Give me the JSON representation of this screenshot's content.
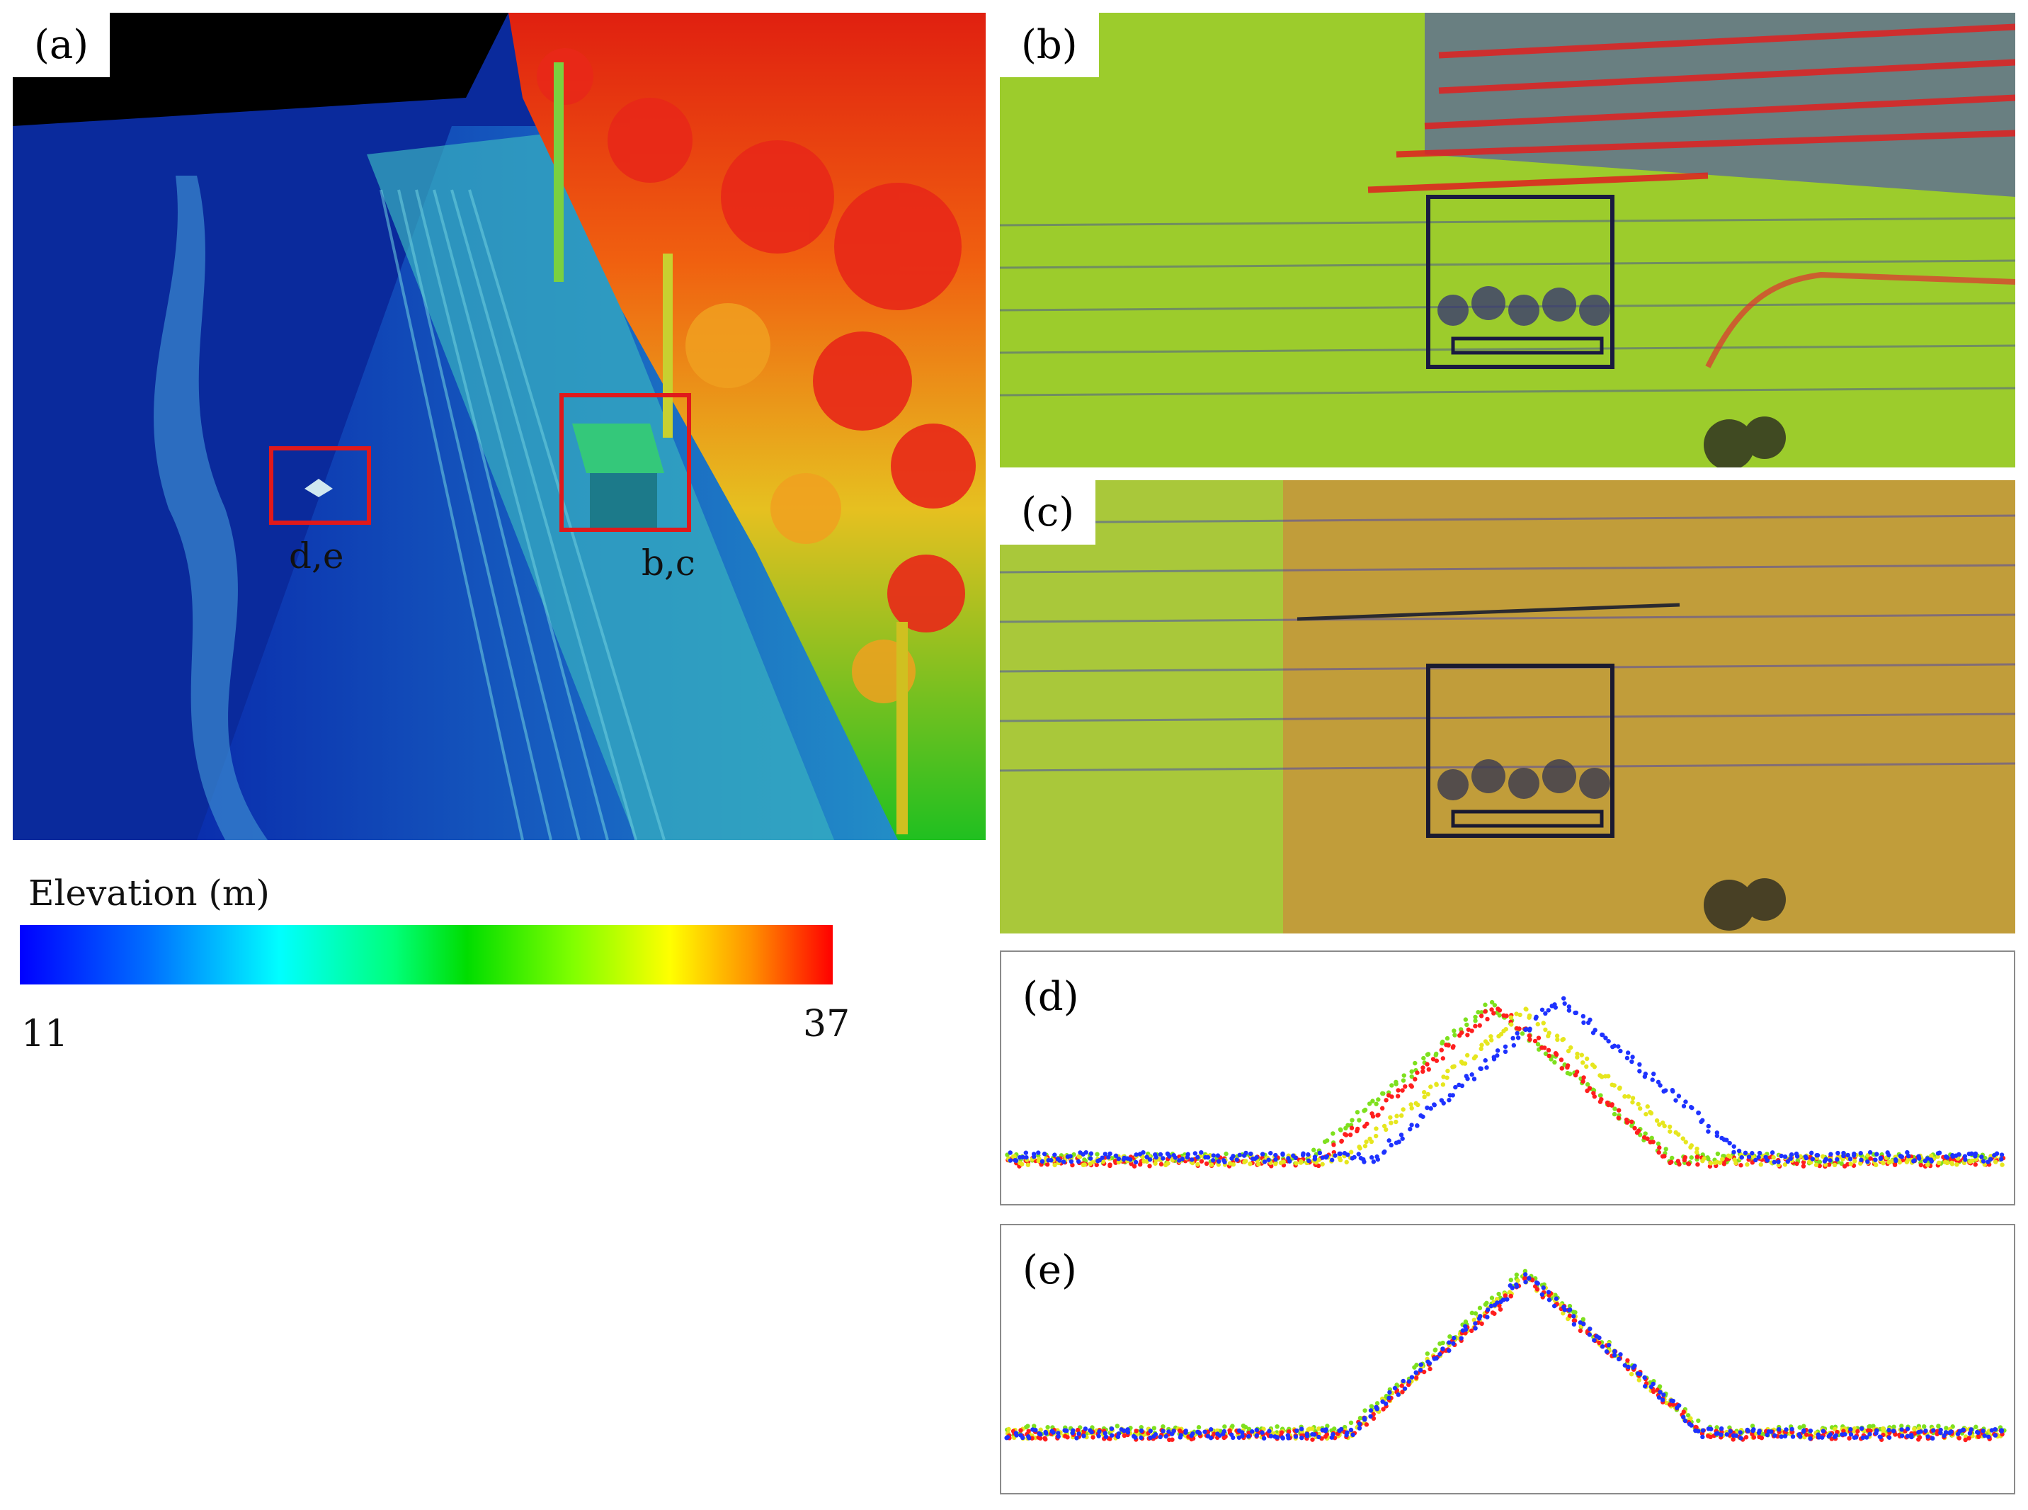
{
  "panels": {
    "a": {
      "label": "(a)"
    },
    "b": {
      "label": "(b)"
    },
    "c": {
      "label": "(c)"
    },
    "d": {
      "label": "(d)"
    },
    "e": {
      "label": "(e)"
    }
  },
  "regions": {
    "de_label": "d,e",
    "bc_label": "b,c"
  },
  "colorbar": {
    "title": "Elevation (m)",
    "min": "11",
    "max": "37",
    "colors": [
      "#0000ff",
      "#00ffff",
      "#00dd00",
      "#ffff00",
      "#ff0000"
    ]
  },
  "point_colors": {
    "strip_1": "#1e32ff",
    "strip_2": "#ff1e1e",
    "strip_3": "#7ee01e",
    "strip_4": "#e6e61e"
  }
}
